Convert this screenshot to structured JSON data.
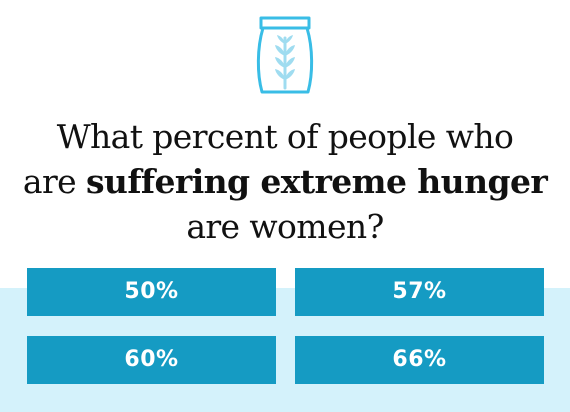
{
  "icon": {
    "name": "grain-sack-icon",
    "outline_color": "#39bde6",
    "wheat_color": "#9fdcf0"
  },
  "question": {
    "line1": "What percent of people who",
    "line2_prefix": "are ",
    "line2_bold": "suffering extreme hunger",
    "line3": "are women?"
  },
  "answers": [
    {
      "label": "50%"
    },
    {
      "label": "57%"
    },
    {
      "label": "60%"
    },
    {
      "label": "66%"
    }
  ],
  "colors": {
    "button": "#159bc3",
    "band": "#d4f2fb",
    "text": "#111111"
  }
}
